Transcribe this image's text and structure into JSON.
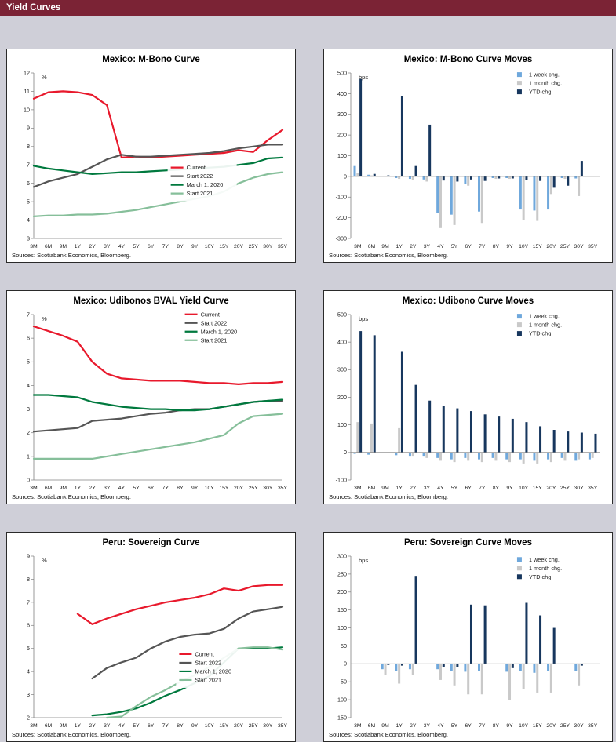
{
  "page": {
    "header": "Yield Curves"
  },
  "chart_data": [
    {
      "type": "line",
      "title": "Mexico: M-Bono Curve",
      "unit": "%",
      "sources": "Sources: Scotiabank Economics, Bloomberg.",
      "categories": [
        "3M",
        "6M",
        "9M",
        "1Y",
        "2Y",
        "3Y",
        "4Y",
        "5Y",
        "6Y",
        "7Y",
        "8Y",
        "9Y",
        "10Y",
        "15Y",
        "20Y",
        "25Y",
        "30Y",
        "35Y"
      ],
      "ylim": [
        3,
        12
      ],
      "ytick_step": 1,
      "grid": false,
      "legend_pos": {
        "x": 0.57,
        "y": 0.53
      },
      "series": [
        {
          "name": "Current",
          "color": "#e8192c",
          "values": [
            10.6,
            10.95,
            11.0,
            10.95,
            10.8,
            10.25,
            7.4,
            7.45,
            7.4,
            7.45,
            7.5,
            7.55,
            7.6,
            7.65,
            7.8,
            7.7,
            8.35,
            8.9
          ]
        },
        {
          "name": "Start 2022",
          "color": "#555555",
          "values": [
            5.8,
            6.1,
            6.3,
            6.5,
            6.9,
            7.3,
            7.55,
            7.45,
            7.45,
            7.5,
            7.55,
            7.6,
            7.65,
            7.75,
            7.9,
            8.0,
            8.1,
            8.1
          ]
        },
        {
          "name": "March 1, 2020",
          "color": "#00793e",
          "values": [
            6.95,
            6.8,
            6.7,
            6.6,
            6.5,
            6.55,
            6.6,
            6.6,
            6.65,
            6.7,
            6.75,
            6.8,
            6.85,
            6.9,
            7.0,
            7.1,
            7.35,
            7.4
          ]
        },
        {
          "name": "Start 2021",
          "color": "#86bf9a",
          "values": [
            4.2,
            4.25,
            4.25,
            4.3,
            4.3,
            4.35,
            4.45,
            4.55,
            4.7,
            4.85,
            5.0,
            5.15,
            5.3,
            5.55,
            6.0,
            6.3,
            6.5,
            6.6
          ]
        }
      ]
    },
    {
      "type": "bar",
      "title": "Mexico: M-Bono Curve Moves",
      "unit": "bps",
      "sources": "Sources: Scotiabank Economics, Bloomberg.",
      "categories": [
        "3M",
        "6M",
        "9M",
        "1Y",
        "2Y",
        "3Y",
        "4Y",
        "5Y",
        "6Y",
        "7Y",
        "8Y",
        "9Y",
        "10Y",
        "15Y",
        "20Y",
        "25Y",
        "30Y",
        "35Y"
      ],
      "ylim": [
        -300,
        500
      ],
      "ytick_step": 100,
      "grid": false,
      "legend_pos": {
        "x": 0.66,
        "y": 0.03
      },
      "series": [
        {
          "name": "1 week chg.",
          "color": "#6fa8dc",
          "values": [
            50,
            8,
            3,
            -8,
            -12,
            -15,
            -175,
            -185,
            -35,
            -170,
            -8,
            -8,
            -160,
            -165,
            -160,
            -8,
            -10,
            0
          ]
        },
        {
          "name": "1 month chg.",
          "color": "#c9c9c9",
          "values": [
            15,
            5,
            0,
            -12,
            -18,
            -25,
            -250,
            -235,
            -45,
            -225,
            -12,
            -12,
            -210,
            -215,
            -85,
            -12,
            -95,
            0
          ]
        },
        {
          "name": "YTD chg.",
          "color": "#17375e",
          "values": [
            470,
            12,
            5,
            390,
            50,
            250,
            -20,
            -25,
            -15,
            -22,
            -10,
            -10,
            -18,
            -22,
            -55,
            -45,
            75,
            0
          ]
        }
      ]
    },
    {
      "type": "line",
      "title": "Mexico: Udibonos BVAL Yield Curve",
      "unit": "%",
      "sources": "Sources: Scotiabank Economics, Bloomberg.",
      "categories": [
        "3M",
        "6M",
        "9M",
        "1Y",
        "2Y",
        "3Y",
        "4Y",
        "5Y",
        "6Y",
        "7Y",
        "8Y",
        "9Y",
        "10Y",
        "15Y",
        "20Y",
        "25Y",
        "30Y",
        "35Y"
      ],
      "ylim": [
        0,
        7
      ],
      "ytick_step": 1,
      "grid": false,
      "legend_pos": {
        "x": 0.62,
        "y": 0.02
      },
      "series": [
        {
          "name": "Current",
          "color": "#e8192c",
          "values": [
            6.5,
            6.3,
            6.1,
            5.85,
            5.0,
            4.5,
            4.3,
            4.25,
            4.2,
            4.2,
            4.2,
            4.15,
            4.1,
            4.1,
            4.05,
            4.1,
            4.1,
            4.15
          ]
        },
        {
          "name": "Start 2022",
          "color": "#555555",
          "values": [
            2.05,
            2.1,
            2.15,
            2.2,
            2.5,
            2.55,
            2.6,
            2.7,
            2.8,
            2.85,
            2.95,
            3.0,
            3.0,
            3.1,
            3.2,
            3.3,
            3.35,
            3.35
          ]
        },
        {
          "name": "March 1, 2020",
          "color": "#00793e",
          "values": [
            3.6,
            3.6,
            3.55,
            3.5,
            3.3,
            3.2,
            3.1,
            3.05,
            3.0,
            3.0,
            2.95,
            2.95,
            3.0,
            3.1,
            3.2,
            3.3,
            3.35,
            3.4
          ]
        },
        {
          "name": "Start 2021",
          "color": "#86bf9a",
          "values": [
            0.9,
            0.9,
            0.9,
            0.9,
            0.9,
            1.0,
            1.1,
            1.2,
            1.3,
            1.4,
            1.5,
            1.6,
            1.75,
            1.9,
            2.4,
            2.7,
            2.75,
            2.8
          ]
        }
      ]
    },
    {
      "type": "bar",
      "title": "Mexico: Udibono Curve Moves",
      "unit": "bps",
      "sources": "Sources: Scotiabank Economics, Bloomberg.",
      "categories": [
        "3M",
        "6M",
        "9M",
        "1Y",
        "2Y",
        "3Y",
        "4Y",
        "5Y",
        "6Y",
        "7Y",
        "8Y",
        "9Y",
        "10Y",
        "15Y",
        "20Y",
        "25Y",
        "30Y",
        "35Y"
      ],
      "ylim": [
        -100,
        500
      ],
      "ytick_step": 100,
      "grid": false,
      "legend_pos": {
        "x": 0.66,
        "y": 0.03
      },
      "series": [
        {
          "name": "1 week chg.",
          "color": "#6fa8dc",
          "values": [
            -5,
            -8,
            0,
            -10,
            -15,
            -15,
            -20,
            -25,
            -20,
            -25,
            -20,
            -25,
            -25,
            -30,
            -25,
            -20,
            -30,
            -25
          ]
        },
        {
          "name": "1 month chg.",
          "color": "#c9c9c9",
          "values": [
            110,
            105,
            0,
            88,
            -15,
            -20,
            -30,
            -35,
            -30,
            -35,
            -30,
            -35,
            -40,
            -40,
            -35,
            -30,
            -25,
            -20
          ]
        },
        {
          "name": "YTD chg.",
          "color": "#17375e",
          "values": [
            440,
            425,
            0,
            365,
            245,
            188,
            170,
            160,
            150,
            138,
            130,
            122,
            110,
            95,
            82,
            76,
            72,
            68
          ]
        }
      ]
    },
    {
      "type": "line",
      "title": "Peru: Sovereign Curve",
      "unit": "%",
      "sources": "Sources: Scotiabank Economics, Bloomberg.",
      "categories": [
        "3M",
        "6M",
        "9M",
        "1Y",
        "2Y",
        "3Y",
        "4Y",
        "5Y",
        "6Y",
        "7Y",
        "8Y",
        "9Y",
        "10Y",
        "15Y",
        "20Y",
        "25Y",
        "30Y",
        "35Y"
      ],
      "ylim": [
        2,
        9
      ],
      "ytick_step": 1,
      "grid": false,
      "legend_pos": {
        "x": 0.6,
        "y": 0.56
      },
      "series": [
        {
          "name": "Current",
          "color": "#e8192c",
          "values": [
            null,
            null,
            null,
            6.5,
            6.05,
            6.3,
            6.5,
            6.7,
            6.85,
            7.0,
            7.1,
            7.2,
            7.35,
            7.6,
            7.5,
            7.7,
            7.75,
            7.75
          ]
        },
        {
          "name": "Start 2022",
          "color": "#555555",
          "values": [
            null,
            null,
            null,
            null,
            3.7,
            4.15,
            4.4,
            4.6,
            5.0,
            5.3,
            5.5,
            5.6,
            5.65,
            5.85,
            6.3,
            6.6,
            6.7,
            6.8
          ]
        },
        {
          "name": "March 1, 2020",
          "color": "#00793e",
          "values": [
            null,
            null,
            null,
            null,
            2.1,
            2.15,
            2.25,
            2.4,
            2.65,
            2.95,
            3.2,
            3.5,
            3.8,
            4.4,
            5.0,
            5.0,
            5.0,
            5.05
          ]
        },
        {
          "name": "Start 2021",
          "color": "#86bf9a",
          "values": [
            null,
            null,
            null,
            null,
            null,
            2.0,
            2.05,
            2.5,
            2.9,
            3.2,
            3.55,
            3.85,
            4.2,
            4.6,
            5.0,
            5.05,
            5.05,
            4.95
          ]
        }
      ]
    },
    {
      "type": "bar",
      "title": "Peru: Sovereign Curve Moves",
      "unit": "bps",
      "sources": "Sources: Scotiabank Economics, Bloomberg.",
      "categories": [
        "3M",
        "6M",
        "9M",
        "1Y",
        "2Y",
        "3Y",
        "4Y",
        "5Y",
        "6Y",
        "7Y",
        "8Y",
        "9Y",
        "10Y",
        "15Y",
        "20Y",
        "25Y",
        "30Y",
        "35Y"
      ],
      "ylim": [
        -150,
        300
      ],
      "ytick_step": 50,
      "grid": false,
      "legend_pos": {
        "x": 0.66,
        "y": 0.04
      },
      "series": [
        {
          "name": "1 week chg.",
          "color": "#6fa8dc",
          "values": [
            0,
            0,
            -15,
            -20,
            -15,
            0,
            -15,
            -20,
            -22,
            -20,
            0,
            -22,
            -20,
            -25,
            -20,
            0,
            -20,
            0
          ]
        },
        {
          "name": "1 month chg.",
          "color": "#c9c9c9",
          "values": [
            0,
            0,
            -30,
            -55,
            -30,
            0,
            -45,
            -60,
            -85,
            -85,
            0,
            -100,
            -70,
            -80,
            -80,
            0,
            -60,
            0
          ]
        },
        {
          "name": "YTD chg.",
          "color": "#17375e",
          "values": [
            0,
            0,
            -3,
            -5,
            245,
            0,
            -8,
            -10,
            165,
            163,
            0,
            -12,
            170,
            135,
            100,
            0,
            -5,
            0
          ]
        }
      ]
    }
  ]
}
